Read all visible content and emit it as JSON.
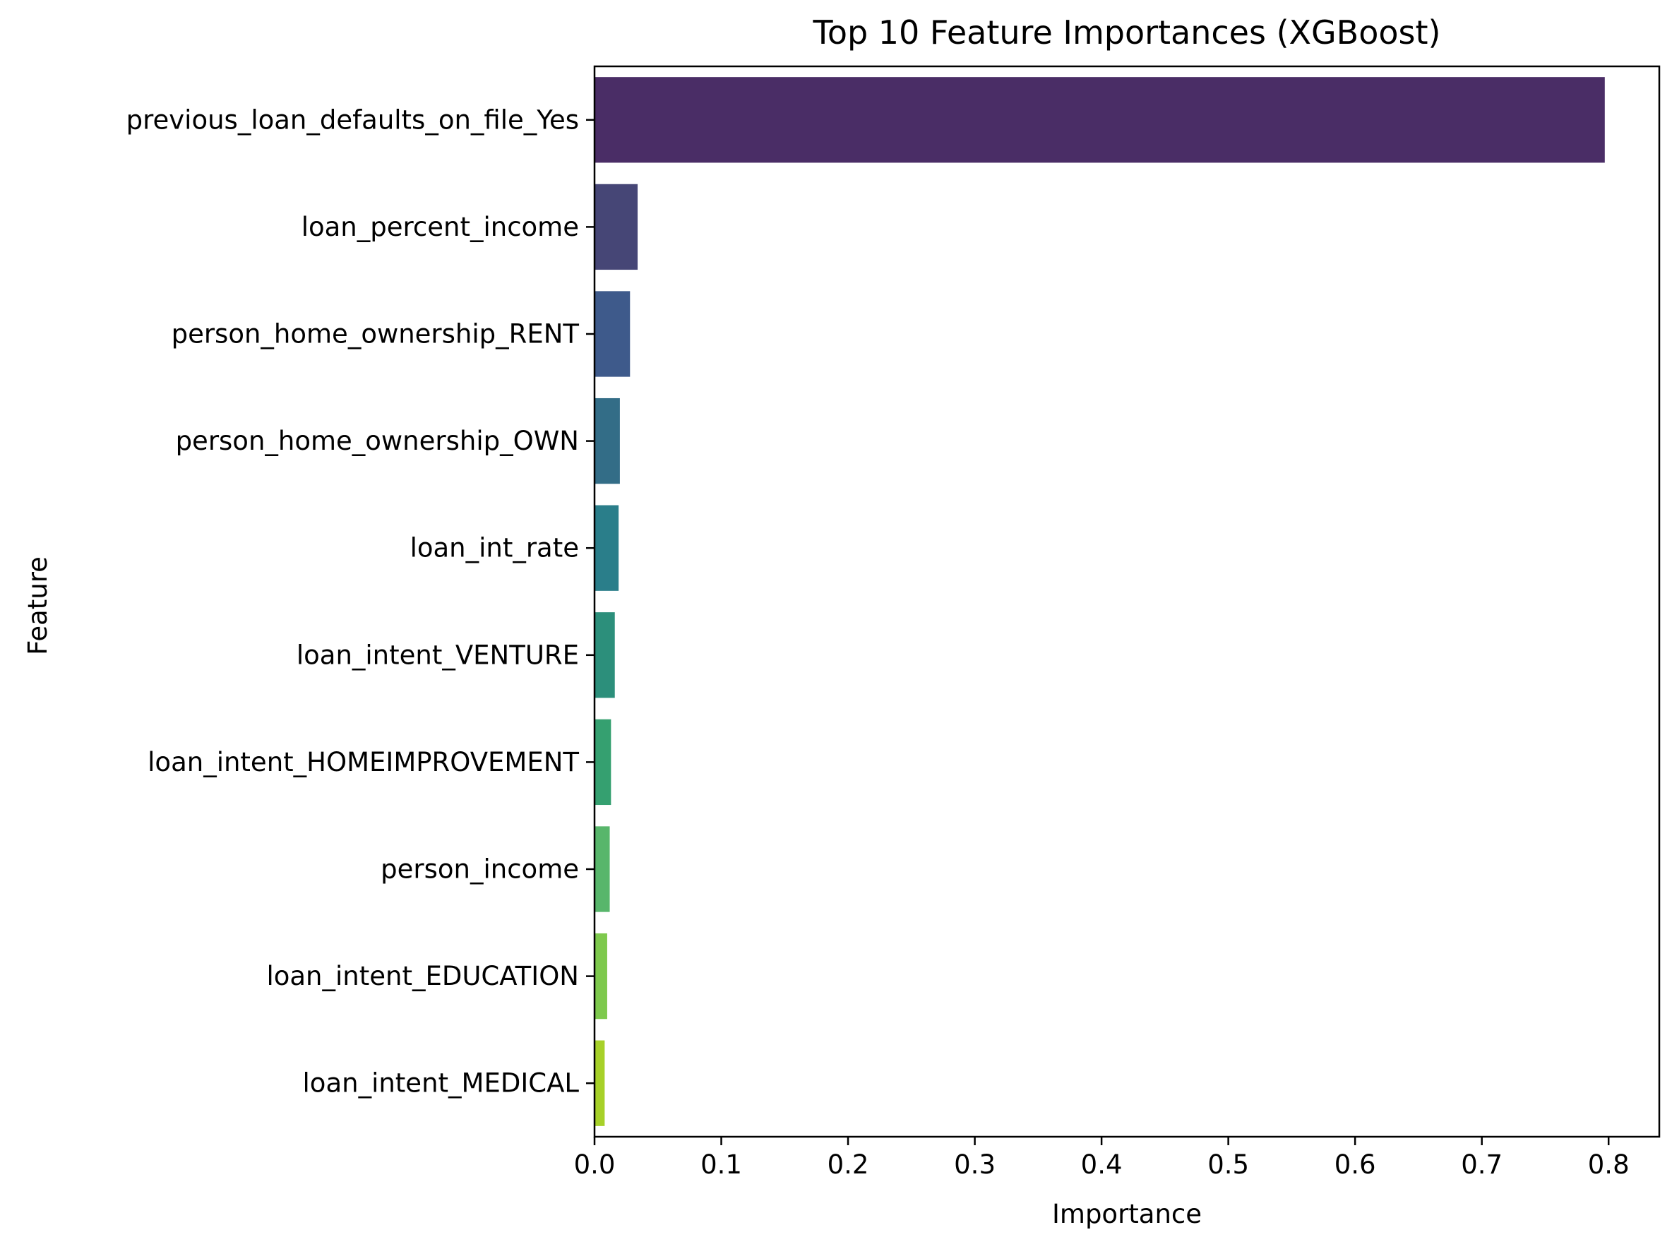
{
  "chart_data": {
    "type": "bar",
    "orientation": "horizontal",
    "title": "Top 10 Feature Importances (XGBoost)",
    "xlabel": "Importance",
    "ylabel": "Feature",
    "xlim": [
      0,
      0.84
    ],
    "x_ticks": [
      0.0,
      0.1,
      0.2,
      0.3,
      0.4,
      0.5,
      0.6,
      0.7,
      0.8
    ],
    "x_tick_labels": [
      "0.0",
      "0.1",
      "0.2",
      "0.3",
      "0.4",
      "0.5",
      "0.6",
      "0.7",
      "0.8"
    ],
    "grid": false,
    "legend": "none",
    "categories": [
      "previous_loan_defaults_on_file_Yes",
      "loan_percent_income",
      "person_home_ownership_RENT",
      "person_home_ownership_OWN",
      "loan_int_rate",
      "loan_intent_VENTURE",
      "loan_intent_HOMEIMPROVEMENT",
      "person_income",
      "loan_intent_EDUCATION",
      "loan_intent_MEDICAL"
    ],
    "values": [
      0.797,
      0.034,
      0.028,
      0.02,
      0.019,
      0.016,
      0.013,
      0.012,
      0.01,
      0.008
    ],
    "colors": [
      "#4a2d66",
      "#464676",
      "#3e5a8b",
      "#336d87",
      "#2a7e8a",
      "#2c8f7b",
      "#35a070",
      "#58b66b",
      "#7ec94d",
      "#a7d129"
    ]
  }
}
